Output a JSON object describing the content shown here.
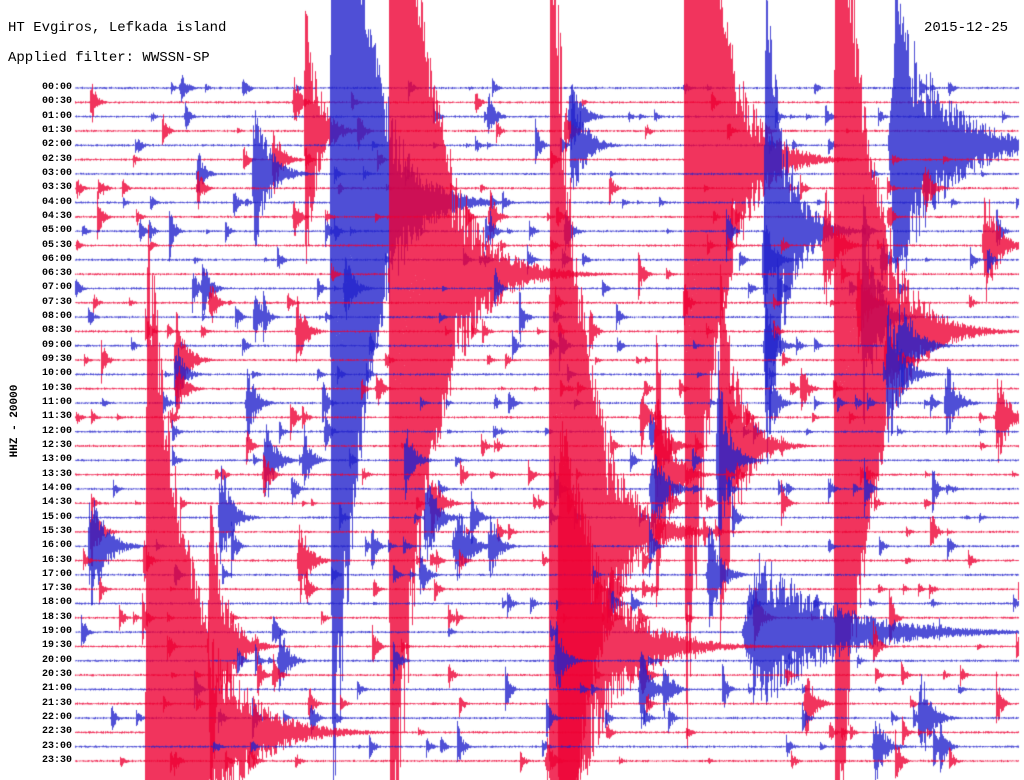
{
  "header": {
    "station_title": "HT Evgiros, Lefkada island",
    "filter_label": "Applied filter: WWSSN-SP",
    "date": "2015-12-25"
  },
  "y_axis": {
    "channel_label": "HHZ - 20000"
  },
  "chart_data": {
    "type": "line",
    "subtype": "helicorder-seismogram",
    "title": "HT Evgiros, Lefkada island",
    "date": "2015-12-25",
    "filter": "WWSSN-SP",
    "channel": "HHZ",
    "gain_scale": 20000,
    "row_duration_minutes": 30,
    "grid": false,
    "background": "#ffffff",
    "label_color": "#000000",
    "row_colors": [
      "#2222cc",
      "#ee0033"
    ],
    "rows": [
      "00:00",
      "00:30",
      "01:00",
      "01:30",
      "02:00",
      "02:30",
      "03:00",
      "03:30",
      "04:00",
      "04:30",
      "05:00",
      "05:30",
      "06:00",
      "06:30",
      "07:00",
      "07:30",
      "08:00",
      "08:30",
      "09:00",
      "09:30",
      "10:00",
      "10:30",
      "11:00",
      "11:30",
      "12:00",
      "12:30",
      "13:00",
      "13:30",
      "14:00",
      "14:30",
      "15:00",
      "15:30",
      "16:00",
      "16:30",
      "17:00",
      "17:30",
      "18:00",
      "18:30",
      "19:00",
      "19:30",
      "20:00",
      "20:30",
      "21:00",
      "21:30",
      "22:00",
      "22:30",
      "23:00",
      "23:30"
    ],
    "events_format": "[row_index, x_fraction_along_row, peak_amplitude_px, decay_px, rise_px] — visually estimated earthquake bursts; amplitudes > 500 appear as full-height vertical lines",
    "events": [
      [
        0,
        0.112,
        18,
        6,
        2
      ],
      [
        0,
        0.178,
        14,
        5,
        2
      ],
      [
        1,
        0.017,
        25,
        5,
        2
      ],
      [
        1,
        0.232,
        30,
        6,
        2
      ],
      [
        1,
        0.425,
        15,
        4,
        2
      ],
      [
        2,
        0.117,
        20,
        4,
        2
      ],
      [
        2,
        0.438,
        28,
        6,
        2
      ],
      [
        2,
        0.525,
        45,
        10,
        3
      ],
      [
        3,
        0.244,
        150,
        12,
        2
      ],
      [
        3,
        0.3,
        25,
        5,
        2
      ],
      [
        3,
        0.52,
        30,
        6,
        2
      ],
      [
        4,
        0.527,
        70,
        12,
        3
      ],
      [
        4,
        0.87,
        160,
        45,
        8
      ],
      [
        5,
        0.21,
        40,
        8,
        2
      ],
      [
        5,
        0.647,
        650,
        28,
        2
      ],
      [
        6,
        0.13,
        30,
        6,
        2
      ],
      [
        6,
        0.19,
        85,
        14,
        3
      ],
      [
        7,
        0.13,
        25,
        5,
        2
      ],
      [
        7,
        0.9,
        35,
        7,
        2
      ],
      [
        8,
        0.272,
        700,
        30,
        2
      ],
      [
        9,
        0.232,
        25,
        5,
        2
      ],
      [
        9,
        0.44,
        30,
        6,
        2
      ],
      [
        10,
        0.52,
        30,
        6,
        2
      ],
      [
        10,
        0.732,
        260,
        20,
        2
      ],
      [
        11,
        0.795,
        70,
        10,
        3
      ],
      [
        11,
        0.965,
        65,
        12,
        4
      ],
      [
        12,
        0.73,
        60,
        8,
        2
      ],
      [
        12,
        0.855,
        30,
        6,
        2
      ],
      [
        13,
        0.334,
        700,
        35,
        2
      ],
      [
        13,
        0.41,
        40,
        20,
        4
      ],
      [
        14,
        0.135,
        35,
        7,
        2
      ],
      [
        14,
        0.286,
        40,
        8,
        2
      ],
      [
        15,
        0.143,
        30,
        6,
        2
      ],
      [
        15,
        0.83,
        55,
        9,
        2
      ],
      [
        16,
        0.19,
        30,
        8,
        2
      ],
      [
        16,
        0.835,
        140,
        12,
        2
      ],
      [
        17,
        0.235,
        45,
        8,
        2
      ],
      [
        17,
        0.806,
        650,
        30,
        2
      ],
      [
        18,
        0.732,
        55,
        9,
        3
      ],
      [
        18,
        0.875,
        60,
        14,
        4
      ],
      [
        19,
        0.107,
        55,
        10,
        3
      ],
      [
        19,
        0.86,
        45,
        10,
        3
      ],
      [
        20,
        0.106,
        40,
        8,
        2
      ],
      [
        20,
        0.862,
        85,
        12,
        3
      ],
      [
        21,
        0.107,
        35,
        8,
        2
      ],
      [
        21,
        0.32,
        25,
        5,
        2
      ],
      [
        21,
        0.77,
        30,
        6,
        2
      ],
      [
        22,
        0.182,
        45,
        8,
        2
      ],
      [
        22,
        0.737,
        40,
        7,
        2
      ],
      [
        22,
        0.924,
        50,
        9,
        3
      ],
      [
        23,
        0.6,
        40,
        7,
        2
      ],
      [
        23,
        0.978,
        55,
        10,
        3
      ],
      [
        24,
        0.265,
        20,
        5,
        2
      ],
      [
        24,
        0.61,
        25,
        5,
        2
      ],
      [
        25,
        0.616,
        60,
        10,
        3
      ],
      [
        25,
        0.684,
        200,
        18,
        2
      ],
      [
        26,
        0.202,
        50,
        9,
        3
      ],
      [
        26,
        0.242,
        40,
        7,
        2
      ],
      [
        26,
        0.35,
        45,
        8,
        2
      ],
      [
        26,
        0.681,
        120,
        10,
        2
      ],
      [
        27,
        0.2,
        30,
        6,
        2
      ],
      [
        27,
        0.616,
        150,
        12,
        2
      ],
      [
        28,
        0.23,
        20,
        5,
        2
      ],
      [
        28,
        0.612,
        55,
        12,
        4
      ],
      [
        29,
        0.378,
        40,
        9,
        3
      ],
      [
        29,
        0.63,
        25,
        5,
        2
      ],
      [
        30,
        0.154,
        65,
        10,
        3
      ],
      [
        30,
        0.372,
        55,
        10,
        3
      ],
      [
        30,
        0.42,
        35,
        6,
        2
      ],
      [
        31,
        0.017,
        40,
        8,
        2
      ],
      [
        31,
        0.504,
        700,
        30,
        2
      ],
      [
        32,
        0.016,
        70,
        14,
        3
      ],
      [
        32,
        0.405,
        45,
        12,
        6
      ],
      [
        32,
        0.44,
        40,
        8,
        3
      ],
      [
        33,
        0.073,
        25,
        5,
        2
      ],
      [
        33,
        0.238,
        50,
        9,
        3
      ],
      [
        34,
        0.366,
        30,
        6,
        2
      ],
      [
        34,
        0.672,
        65,
        10,
        3
      ],
      [
        35,
        0.245,
        20,
        5,
        2
      ],
      [
        35,
        0.568,
        35,
        7,
        2
      ],
      [
        36,
        0.566,
        28,
        6,
        2
      ],
      [
        36,
        0.715,
        25,
        5,
        2
      ],
      [
        37,
        0.563,
        30,
        6,
        2
      ],
      [
        37,
        0.72,
        35,
        7,
        2
      ],
      [
        38,
        0.21,
        20,
        5,
        2
      ],
      [
        38,
        0.722,
        90,
        70,
        15
      ],
      [
        39,
        0.143,
        160,
        15,
        3
      ],
      [
        39,
        0.514,
        260,
        40,
        4
      ],
      [
        40,
        0.217,
        40,
        8,
        3
      ],
      [
        40,
        0.51,
        45,
        8,
        3
      ],
      [
        41,
        0.21,
        25,
        5,
        2
      ],
      [
        41,
        0.6,
        30,
        6,
        2
      ],
      [
        42,
        0.6,
        50,
        9,
        3
      ],
      [
        42,
        0.624,
        40,
        7,
        2
      ],
      [
        43,
        0.248,
        20,
        5,
        2
      ],
      [
        43,
        0.775,
        40,
        8,
        3
      ],
      [
        44,
        0.25,
        20,
        5,
        2
      ],
      [
        44,
        0.896,
        55,
        10,
        3
      ],
      [
        45,
        0.076,
        550,
        40,
        2
      ],
      [
        45,
        0.13,
        60,
        25,
        6
      ],
      [
        46,
        0.848,
        45,
        9,
        3
      ],
      [
        46,
        0.917,
        30,
        6,
        2
      ],
      [
        47,
        0.185,
        22,
        5,
        2
      ],
      [
        47,
        0.5,
        28,
        6,
        2
      ]
    ]
  }
}
